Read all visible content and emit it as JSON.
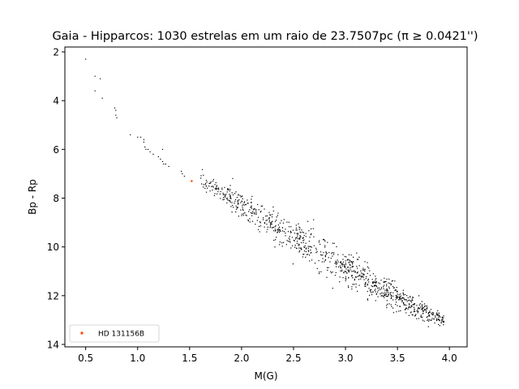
{
  "chart_data": {
    "type": "scatter",
    "title": "Gaia - Hipparcos: 1030 estrelas em um raio de 23.7507pc (π ≥ 0.0421'')",
    "xlabel": "M(G)",
    "ylabel": "Bp - Rp",
    "xlim": [
      0.3,
      4.17
    ],
    "ylim": [
      14.1,
      1.8
    ],
    "y_inverted": true,
    "xticks": [
      0.5,
      1.0,
      1.5,
      2.0,
      2.5,
      3.0,
      3.5,
      4.0
    ],
    "xtick_labels": [
      "0.5",
      "1.0",
      "1.5",
      "2.0",
      "2.5",
      "3.0",
      "3.5",
      "4.0"
    ],
    "yticks": [
      2,
      4,
      6,
      8,
      10,
      12,
      14
    ],
    "ytick_labels": [
      "2",
      "4",
      "6",
      "8",
      "10",
      "12",
      "14"
    ],
    "grid": false,
    "legend_position": "lower-left",
    "series": [
      {
        "name": "",
        "color": "#000000",
        "marker_size": 1.2,
        "count": 1030,
        "points": [
          [
            0.5,
            2.3
          ],
          [
            0.59,
            3.0
          ],
          [
            0.64,
            3.1
          ],
          [
            0.59,
            3.6
          ],
          [
            0.66,
            3.9
          ],
          [
            0.78,
            4.3
          ],
          [
            0.79,
            4.4
          ],
          [
            0.79,
            4.6
          ],
          [
            0.8,
            4.7
          ],
          [
            0.93,
            5.4
          ],
          [
            1.0,
            5.5
          ],
          [
            1.03,
            5.5
          ],
          [
            1.06,
            5.6
          ],
          [
            1.06,
            5.7
          ],
          [
            1.07,
            5.9
          ],
          [
            1.08,
            6.0
          ],
          [
            1.1,
            6.0
          ],
          [
            1.12,
            6.1
          ],
          [
            1.15,
            6.2
          ],
          [
            1.2,
            6.3
          ],
          [
            1.22,
            6.4
          ],
          [
            1.24,
            6.5
          ],
          [
            1.27,
            6.6
          ],
          [
            1.25,
            6.6
          ],
          [
            1.3,
            6.7
          ],
          [
            1.24,
            6.0
          ],
          [
            1.42,
            6.9
          ],
          [
            1.43,
            7.0
          ],
          [
            1.45,
            7.1
          ],
          [
            1.66,
            7.5
          ]
        ],
        "trend": {
          "description": "main sequence band, scattered around the fitted relation",
          "x_start": 1.6,
          "x_end": 3.95,
          "coef": [
            2.333,
            3.233,
            -0.13
          ],
          "noise_y": 0.2,
          "bulk": 970
        }
      },
      {
        "name": "HD 131156B",
        "color": "#ff4500",
        "marker_size": 2.2,
        "points": [
          [
            1.52,
            7.3
          ]
        ]
      }
    ]
  }
}
